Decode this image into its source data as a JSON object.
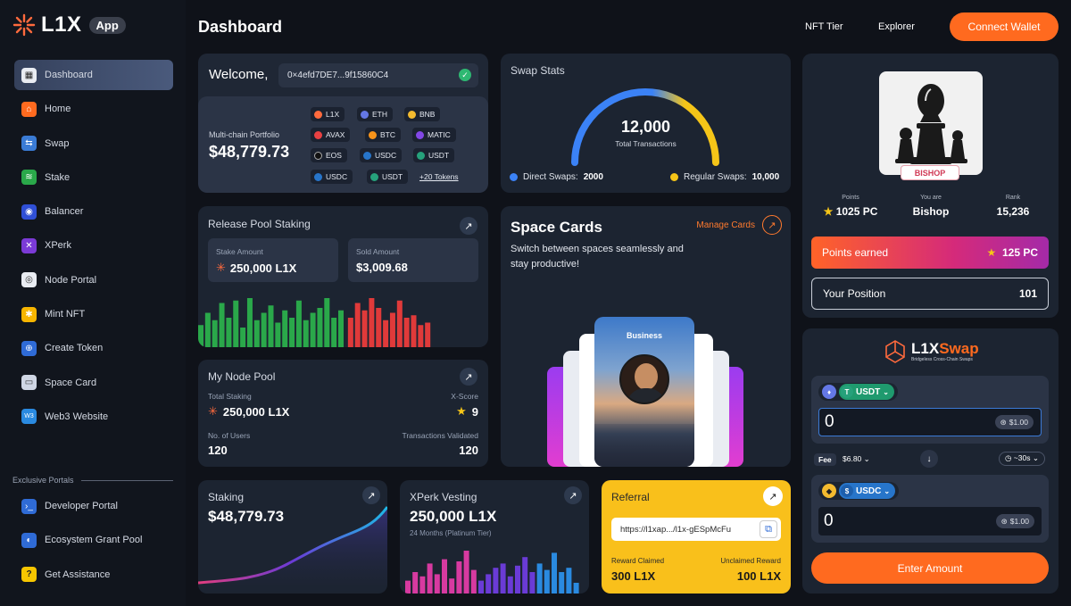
{
  "brand": {
    "name": "L1X",
    "badge": "App"
  },
  "sidebar": {
    "items": [
      {
        "label": "Dashboard",
        "icon": "grid-icon",
        "color": "#e9ecf2"
      },
      {
        "label": "Home",
        "icon": "home-icon",
        "color": "#ff6a1f"
      },
      {
        "label": "Swap",
        "icon": "swap-icon",
        "color": "#3a7bd5"
      },
      {
        "label": "Stake",
        "icon": "stake-icon",
        "color": "#2aa84a"
      },
      {
        "label": "Balancer",
        "icon": "balancer-icon",
        "color": "#2f4fd6"
      },
      {
        "label": "XPerk",
        "icon": "xperk-icon",
        "color": "#7b3ad6"
      },
      {
        "label": "Node Portal",
        "icon": "node-icon",
        "color": "#e9ecf2"
      },
      {
        "label": "Mint NFT",
        "icon": "mint-icon",
        "color": "#f7b500"
      },
      {
        "label": "Create Token",
        "icon": "token-icon",
        "color": "#2f6bd6"
      },
      {
        "label": "Space Card",
        "icon": "card-icon",
        "color": "#cfd6e4"
      },
      {
        "label": "Web3 Website",
        "icon": "web3-icon",
        "color": "#2a8ae0"
      }
    ],
    "exclusive_label": "Exclusive Portals",
    "portals": [
      {
        "label": "Developer Portal",
        "icon": "developer-icon",
        "color": "#2f6bd6"
      },
      {
        "label": "Ecosystem Grant Pool",
        "icon": "grant-icon",
        "color": "#2f6bd6"
      },
      {
        "label": "Get Assistance",
        "icon": "help-icon",
        "color": "#f7c600"
      }
    ]
  },
  "header": {
    "title": "Dashboard",
    "nft_tier": "NFT Tier",
    "explorer": "Explorer",
    "connect": "Connect Wallet"
  },
  "welcome": {
    "label": "Welcome,",
    "address": "0×4efd7DE7...9f15860C4",
    "portfolio_label": "Multi-chain Portfolio",
    "portfolio_value": "$48,779.73",
    "tokens": [
      "L1X",
      "ETH",
      "BNB",
      "AVAX",
      "BTC",
      "MATIC",
      "EOS",
      "USDC",
      "USDT",
      "USDC",
      "USDT"
    ],
    "more_tokens": "+20 Tokens"
  },
  "swap_stats": {
    "title": "Swap Stats",
    "total": "12,000",
    "total_label": "Total Transactions",
    "direct_label": "Direct Swaps:",
    "direct_value": "2000",
    "regular_label": "Regular Swaps:",
    "regular_value": "10,000",
    "direct_color": "#3b82f6",
    "regular_color": "#f5c518"
  },
  "release_pool": {
    "title": "Release Pool Staking",
    "stake_label": "Stake Amount",
    "stake_value": "250,000 L1X",
    "sold_label": "Sold Amount",
    "sold_value": "$3,009.68",
    "green_bars": [
      0.45,
      0.7,
      0.55,
      0.9,
      0.6,
      0.95,
      0.4,
      1.0,
      0.55,
      0.7,
      0.85,
      0.5,
      0.75,
      0.6,
      0.95,
      0.55,
      0.7,
      0.8,
      1.0,
      0.6,
      0.75
    ],
    "red_bars": [
      0.6,
      0.9,
      0.75,
      1.0,
      0.8,
      0.55,
      0.7,
      0.95,
      0.6,
      0.65,
      0.45,
      0.5
    ]
  },
  "space_cards": {
    "title": "Space Cards",
    "manage": "Manage Cards",
    "subtitle": "Switch between spaces seamlessly and stay productive!",
    "card_label": "Business"
  },
  "node_pool": {
    "title": "My Node Pool",
    "total_staking_label": "Total Staking",
    "total_staking": "250,000 L1X",
    "xscore_label": "X-Score",
    "xscore": "9",
    "users_label": "No. of Users",
    "users": "120",
    "tx_label": "Transactions Validated",
    "tx": "120"
  },
  "staking": {
    "title": "Staking",
    "value": "$48,779.73"
  },
  "xperk": {
    "title": "XPerk Vesting",
    "value": "250,000 L1X",
    "sub": "24 Months (Platinum Tier)",
    "bars": [
      0.3,
      0.5,
      0.4,
      0.7,
      0.45,
      0.8,
      0.35,
      0.75,
      1.0,
      0.55,
      0.3,
      0.45,
      0.6,
      0.7,
      0.4,
      0.65,
      0.85,
      0.5,
      0.7,
      0.55,
      0.95,
      0.5,
      0.6,
      0.25
    ]
  },
  "referral": {
    "title": "Referral",
    "link": "https://l1xap.../l1x-gESpMcFu",
    "claimed_label": "Reward Claimed",
    "claimed": "300 L1X",
    "unclaimed_label": "Unclaimed Reward",
    "unclaimed": "100 L1X"
  },
  "profile": {
    "tier": "BISHOP",
    "points_label": "Points",
    "points": "1025 PC",
    "you_are_label": "You are",
    "you_are": "Bishop",
    "rank_label": "Rank",
    "rank": "15,236",
    "earned_label": "Points earned",
    "earned": "125 PC",
    "position_label": "Your Position",
    "position": "101"
  },
  "l1xswap": {
    "brand_a": "L1X",
    "brand_b": "Swap",
    "tagline": "Bridgeless Cross-Chain Swaps",
    "from_token": "USDT",
    "from_amount": "0",
    "from_usd": "$1.00",
    "fee_label": "Fee",
    "fee": "$6.80",
    "time": "~30s",
    "to_token": "USDC",
    "to_amount": "0",
    "to_usd": "$1.00",
    "button": "Enter Amount"
  }
}
